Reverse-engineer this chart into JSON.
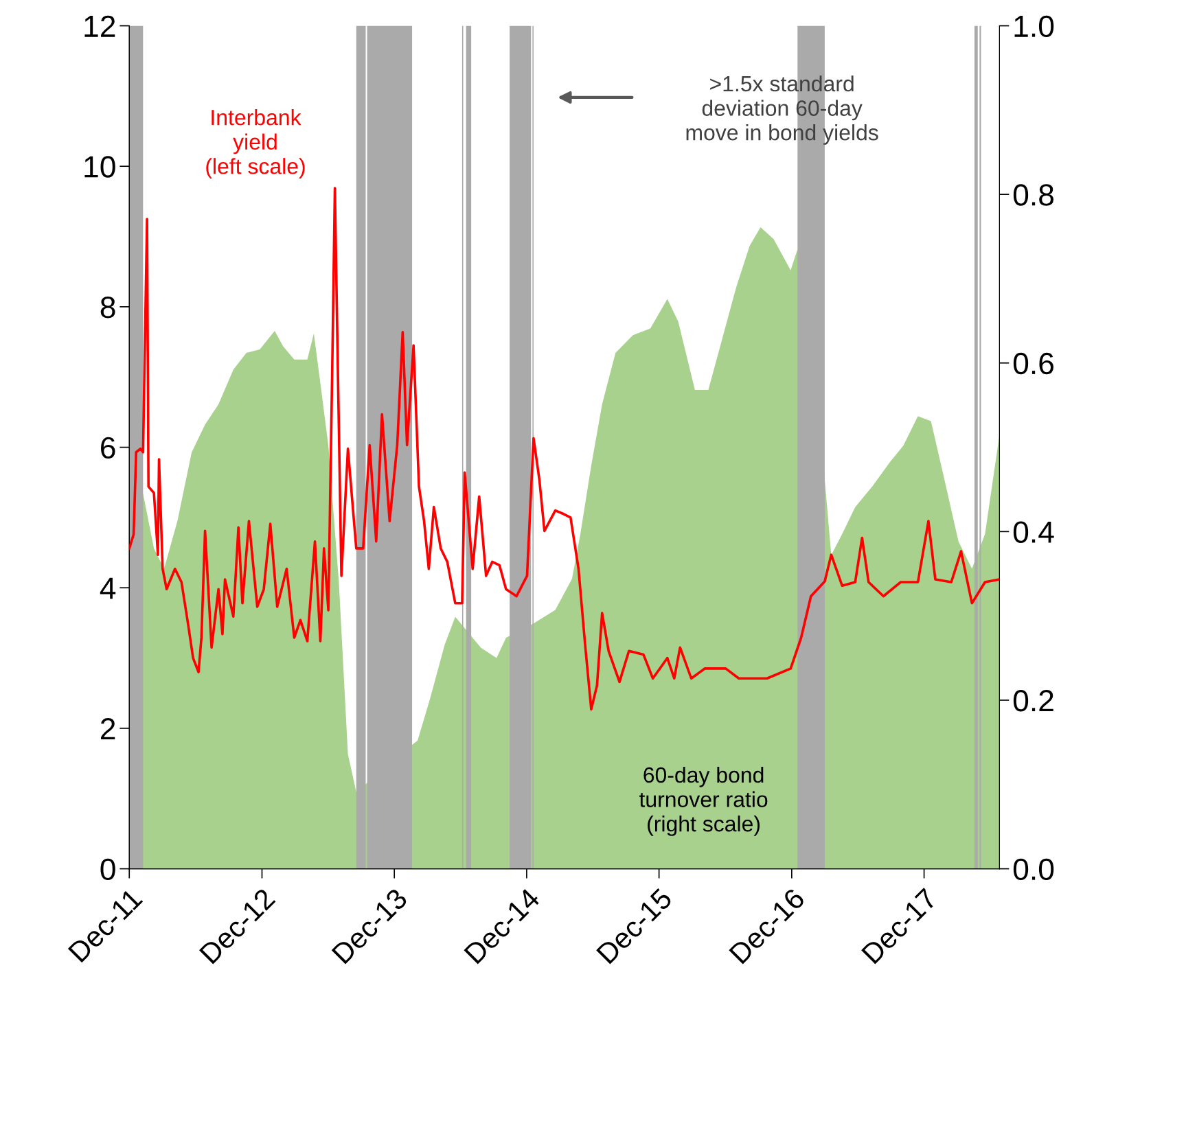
{
  "chart_data": {
    "type": "line",
    "xlim": [
      "2011-12-01",
      "2018-06-27"
    ],
    "xticks": [
      {
        "value": "2011-12-01",
        "label": "Dec-11"
      },
      {
        "value": "2012-12-01",
        "label": "Dec-12"
      },
      {
        "value": "2013-12-01",
        "label": "Dec-13"
      },
      {
        "value": "2014-12-01",
        "label": "Dec-14"
      },
      {
        "value": "2015-12-01",
        "label": "Dec-15"
      },
      {
        "value": "2016-12-01",
        "label": "Dec-16"
      },
      {
        "value": "2017-12-01",
        "label": "Dec-17"
      }
    ],
    "ylim": [
      0,
      12
    ],
    "yticks": [
      0,
      2,
      4,
      6,
      8,
      10,
      12
    ],
    "y2lim": [
      0,
      1
    ],
    "y2ticks": [
      {
        "value": 0,
        "label": "0.0"
      },
      {
        "value": 0.2,
        "label": "0.2"
      },
      {
        "value": 0.4,
        "label": "0.4"
      },
      {
        "value": 0.6,
        "label": "0.6"
      },
      {
        "value": 0.8,
        "label": "0.8"
      },
      {
        "value": 1,
        "label": "1.0"
      }
    ],
    "series": [
      {
        "name": "60-day bond\nturnover ratio\n(right scale)",
        "type": "area",
        "axis": "y2",
        "color": "#a9d18e",
        "x": [
          "2011-12-01",
          "2012-01-08",
          "2012-02-07",
          "2012-03-06",
          "2012-04-12",
          "2012-05-21",
          "2012-06-27",
          "2012-08-03",
          "2012-09-13",
          "2012-10-19",
          "2012-11-25",
          "2013-01-05",
          "2013-01-28",
          "2013-02-28",
          "2013-04-05",
          "2013-04-23",
          "2013-05-11",
          "2013-06-02",
          "2013-07-01",
          "2013-07-26",
          "2013-08-18",
          "2014-01-22",
          "2014-02-03",
          "2014-03-09",
          "2014-04-19",
          "2014-05-18",
          "2014-07-28",
          "2014-09-09",
          "2014-10-05",
          "2014-12-20",
          "2015-02-18",
          "2015-04-05",
          "2015-04-28",
          "2015-05-28",
          "2015-06-27",
          "2015-08-03",
          "2015-09-20",
          "2015-11-07",
          "2015-12-24",
          "2016-01-23",
          "2016-03-09",
          "2016-04-15",
          "2016-05-21",
          "2016-07-01",
          "2016-08-07",
          "2016-09-06",
          "2016-10-12",
          "2016-11-28",
          "2016-12-17",
          "2017-03-02",
          "2017-03-20",
          "2017-04-19",
          "2017-05-25",
          "2017-07-12",
          "2017-08-28",
          "2017-10-05",
          "2017-11-14",
          "2017-12-20",
          "2018-01-26",
          "2018-03-06",
          "2018-04-12",
          "2018-05-18",
          "2018-06-27"
        ],
        "values": [
          0.405,
          0.445,
          0.38,
          0.356,
          0.413,
          0.494,
          0.527,
          0.551,
          0.592,
          0.612,
          0.616,
          0.638,
          0.62,
          0.604,
          0.604,
          0.635,
          0.576,
          0.502,
          0.34,
          0.136,
          0.091,
          0.148,
          0.152,
          0.201,
          0.266,
          0.299,
          0.262,
          0.25,
          0.274,
          0.291,
          0.307,
          0.344,
          0.397,
          0.478,
          0.551,
          0.612,
          0.633,
          0.641,
          0.676,
          0.649,
          0.568,
          0.568,
          0.625,
          0.69,
          0.739,
          0.761,
          0.747,
          0.71,
          0.735,
          0.462,
          0.372,
          0.397,
          0.429,
          0.454,
          0.482,
          0.502,
          0.537,
          0.531,
          0.462,
          0.388,
          0.356,
          0.397,
          0.515
        ]
      },
      {
        "name": "Interbank\nyield\n(left scale)",
        "axis": "y",
        "color": "#ff0000",
        "x": [
          "2011-12-01",
          "2011-12-13",
          "2011-12-20",
          "2012-01-01",
          "2012-01-08",
          "2012-01-19",
          "2012-01-23",
          "2012-02-07",
          "2012-02-18",
          "2012-02-21",
          "2012-03-02",
          "2012-03-13",
          "2012-04-05",
          "2012-04-23",
          "2012-05-11",
          "2012-05-25",
          "2012-06-09",
          "2012-06-17",
          "2012-06-27",
          "2012-07-15",
          "2012-08-03",
          "2012-08-14",
          "2012-08-21",
          "2012-09-13",
          "2012-09-27",
          "2012-10-08",
          "2012-10-26",
          "2012-11-18",
          "2012-12-06",
          "2012-12-24",
          "2013-01-12",
          "2013-02-07",
          "2013-02-28",
          "2013-03-17",
          "2013-04-05",
          "2013-04-26",
          "2013-05-11",
          "2013-05-21",
          "2013-06-02",
          "2013-06-13",
          "2013-06-20",
          "2013-06-27",
          "2013-07-08",
          "2013-07-26",
          "2013-08-18",
          "2013-09-06",
          "2013-09-24",
          "2013-10-12",
          "2013-10-28",
          "2013-11-18",
          "2013-12-09",
          "2013-12-24",
          "2014-01-05",
          "2014-01-23",
          "2014-02-07",
          "2014-02-21",
          "2014-03-06",
          "2014-03-20",
          "2014-04-08",
          "2014-04-26",
          "2014-05-18",
          "2014-06-06",
          "2014-06-13",
          "2014-07-05",
          "2014-07-23",
          "2014-08-11",
          "2014-08-28",
          "2014-09-17",
          "2014-10-05",
          "2014-11-03",
          "2014-12-02",
          "2014-12-20",
          "2015-01-05",
          "2015-01-19",
          "2015-02-18",
          "2015-03-13",
          "2015-04-01",
          "2015-04-23",
          "2015-05-11",
          "2015-05-28",
          "2015-06-13",
          "2015-06-27",
          "2015-07-15",
          "2015-08-14",
          "2015-09-09",
          "2015-10-19",
          "2015-11-14",
          "2015-12-24",
          "2016-01-12",
          "2016-01-28",
          "2016-02-28",
          "2016-04-05",
          "2016-06-02",
          "2016-07-08",
          "2016-09-24",
          "2016-11-28",
          "2016-12-27",
          "2017-01-23",
          "2017-03-02",
          "2017-03-20",
          "2017-04-19",
          "2017-05-25",
          "2017-06-13",
          "2017-07-01",
          "2017-08-11",
          "2017-09-27",
          "2017-11-14",
          "2017-12-13",
          "2018-01-01",
          "2018-02-14",
          "2018-03-13",
          "2018-04-12",
          "2018-05-18",
          "2018-06-27"
        ],
        "values": [
          4.56,
          4.76,
          5.93,
          5.98,
          5.93,
          9.25,
          5.44,
          5.35,
          4.47,
          5.83,
          4.27,
          3.98,
          4.27,
          4.08,
          3.49,
          3.0,
          2.8,
          3.29,
          4.81,
          3.15,
          3.98,
          3.34,
          4.12,
          3.59,
          4.86,
          3.78,
          4.95,
          3.73,
          3.98,
          4.91,
          3.73,
          4.27,
          3.29,
          3.54,
          3.24,
          4.66,
          3.24,
          4.56,
          3.68,
          7.2,
          9.69,
          7.5,
          4.17,
          5.98,
          4.56,
          4.56,
          6.03,
          4.66,
          6.47,
          4.95,
          6.03,
          7.64,
          6.03,
          7.45,
          5.44,
          4.95,
          4.27,
          5.15,
          4.56,
          4.37,
          3.78,
          3.78,
          5.64,
          4.27,
          5.3,
          4.17,
          4.37,
          4.32,
          3.98,
          3.88,
          4.17,
          6.13,
          5.54,
          4.81,
          5.1,
          5.05,
          5.0,
          4.27,
          3.2,
          2.27,
          2.61,
          3.64,
          3.1,
          2.66,
          3.1,
          3.05,
          2.71,
          3.0,
          2.71,
          3.15,
          2.71,
          2.85,
          2.85,
          2.71,
          2.71,
          2.85,
          3.29,
          3.88,
          4.09,
          4.47,
          4.03,
          4.08,
          4.71,
          4.08,
          3.88,
          4.08,
          4.08,
          4.95,
          4.12,
          4.08,
          4.52,
          3.78,
          4.08,
          4.12
        ]
      }
    ],
    "bands": [
      {
        "axis": "x",
        "from": "2011-12-01",
        "to": "2012-01-08",
        "color": "#aaaaaa"
      },
      {
        "axis": "x",
        "from": "2013-08-18",
        "to": "2013-09-13",
        "color": "#aaaaaa"
      },
      {
        "axis": "x",
        "from": "2013-09-17",
        "to": "2014-01-19",
        "color": "#aaaaaa"
      },
      {
        "axis": "x",
        "from": "2014-06-06",
        "to": "2014-06-09",
        "color": "#aaaaaa"
      },
      {
        "axis": "x",
        "from": "2014-06-17",
        "to": "2014-07-01",
        "color": "#aaaaaa"
      },
      {
        "axis": "x",
        "from": "2014-10-15",
        "to": "2014-12-13",
        "color": "#aaaaaa"
      },
      {
        "axis": "x",
        "from": "2014-12-17",
        "to": "2014-12-20",
        "color": "#aaaaaa"
      },
      {
        "axis": "x",
        "from": "2016-12-17",
        "to": "2017-03-02",
        "color": "#aaaaaa"
      },
      {
        "axis": "x",
        "from": "2018-04-19",
        "to": "2018-04-28",
        "color": "#aaaaaa"
      },
      {
        "axis": "x",
        "from": "2018-05-03",
        "to": "2018-05-07",
        "color": "#aaaaaa"
      }
    ],
    "annotations": [
      ">1.5x standard\ndeviation 60-day\nmove in bond yields"
    ]
  }
}
